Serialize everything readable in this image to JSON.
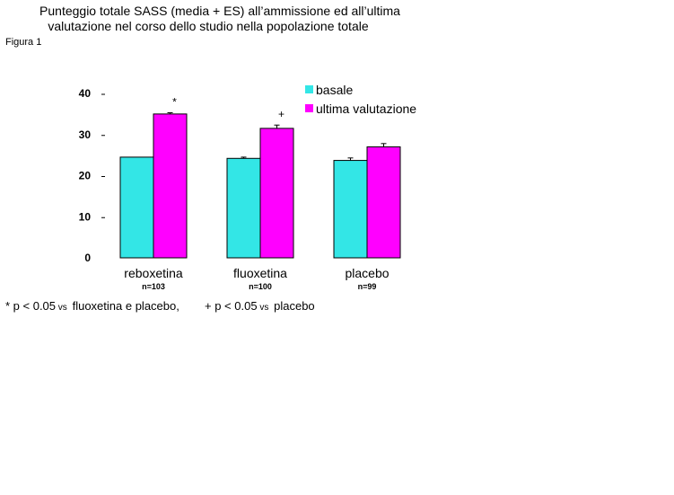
{
  "chart_data": {
    "type": "bar",
    "title_line1": "Punteggio totale SASS (media + ES) all’ammissione ed all’ultima",
    "title_line2": "valutazione nel corso dello studio nella popolazione totale",
    "figure_label": "Figura 1",
    "categories": [
      "reboxetina",
      "fluoxetina",
      "placebo"
    ],
    "n_labels": [
      "n=103",
      "n=100",
      "n=99"
    ],
    "series": [
      {
        "name": "basale",
        "values": [
          24.5,
          24.2,
          23.7
        ],
        "errors": [
          0,
          0.3,
          0.6
        ],
        "color": "#33e6e6"
      },
      {
        "name": "ultima valutazione",
        "values": [
          35.0,
          31.5,
          27.0
        ],
        "errors": [
          0.3,
          0.8,
          0.8
        ],
        "color": "#ff00ff"
      }
    ],
    "annotations": [
      {
        "category": 0,
        "series": 1,
        "text": "*"
      },
      {
        "category": 1,
        "series": 1,
        "text": "+"
      }
    ],
    "yticks": [
      "0",
      "10",
      "20",
      "30",
      "40"
    ],
    "ylim": [
      0,
      40
    ],
    "legend_position": "top-right",
    "footnote": {
      "part1": "* p < 0.05",
      "part2": " vs ",
      "part3": "fluoxetina e placebo,",
      "part4": "+ p < 0.05",
      "part5": " vs ",
      "part6": "placebo"
    }
  }
}
